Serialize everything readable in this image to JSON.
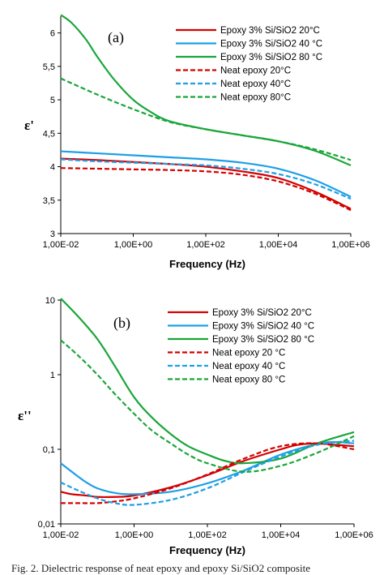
{
  "colors": {
    "red": "#d40000",
    "blue": "#1e9fe6",
    "green": "#1aa63a"
  },
  "caption": "Fig. 2. Dielectric response of neat epoxy and epoxy Si/SiO2 composite",
  "chart_data": [
    {
      "type": "line",
      "panel_label": "(a)",
      "xlabel": "Frequency (Hz)",
      "ylabel": "ε'",
      "xscale": "log",
      "xlim": [
        0.01,
        1000000
      ],
      "ylim": [
        3,
        6.25
      ],
      "xticks": [
        0.01,
        1,
        100,
        10000,
        1000000
      ],
      "xtick_labels": [
        "1,00E-02",
        "1,00E+00",
        "1,00E+02",
        "1,00E+04",
        "1,00E+06"
      ],
      "yticks": [
        3,
        3.5,
        4,
        4.5,
        5,
        5.5,
        6
      ],
      "ytick_labels": [
        "3",
        "3,5",
        "4",
        "4,5",
        "5",
        "5,5",
        "6"
      ],
      "legend_position": "top-right",
      "series": [
        {
          "name": "Epoxy 3% Si/SiO2 20°C",
          "color": "#d40000",
          "dash": false,
          "x": [
            0.01,
            0.1,
            1,
            10,
            100,
            1000,
            10000,
            100000,
            1000000
          ],
          "y": [
            4.12,
            4.1,
            4.07,
            4.04,
            4.0,
            3.93,
            3.83,
            3.63,
            3.37
          ]
        },
        {
          "name": "Epoxy 3% Si/SiO2 40 °C",
          "color": "#1e9fe6",
          "dash": false,
          "x": [
            0.01,
            0.1,
            1,
            10,
            100,
            1000,
            10000,
            100000,
            1000000
          ],
          "y": [
            4.23,
            4.2,
            4.17,
            4.14,
            4.11,
            4.06,
            3.97,
            3.8,
            3.55
          ]
        },
        {
          "name": "Epoxy 3% Si/SiO2 80 °C",
          "color": "#1aa63a",
          "dash": false,
          "x": [
            0.01,
            0.02,
            0.05,
            0.1,
            0.3,
            1,
            3,
            10,
            100,
            1000,
            10000,
            100000,
            1000000
          ],
          "y": [
            6.27,
            6.15,
            5.9,
            5.65,
            5.3,
            5.0,
            4.82,
            4.68,
            4.56,
            4.47,
            4.38,
            4.24,
            4.02
          ]
        },
        {
          "name": "Neat epoxy 20°C",
          "color": "#d40000",
          "dash": true,
          "x": [
            0.01,
            0.1,
            1,
            10,
            100,
            1000,
            10000,
            100000,
            1000000
          ],
          "y": [
            3.98,
            3.97,
            3.96,
            3.95,
            3.93,
            3.88,
            3.78,
            3.6,
            3.35
          ]
        },
        {
          "name": "Neat epoxy 40°C",
          "color": "#1e9fe6",
          "dash": true,
          "x": [
            0.01,
            0.1,
            1,
            10,
            100,
            1000,
            10000,
            100000,
            1000000
          ],
          "y": [
            4.11,
            4.08,
            4.06,
            4.04,
            4.02,
            3.97,
            3.89,
            3.74,
            3.52
          ]
        },
        {
          "name": "Neat epoxy 80°C",
          "color": "#1aa63a",
          "dash": true,
          "x": [
            0.01,
            0.1,
            1,
            10,
            100,
            1000,
            10000,
            100000,
            1000000
          ],
          "y": [
            5.32,
            5.08,
            4.86,
            4.67,
            4.56,
            4.47,
            4.38,
            4.26,
            4.1
          ]
        }
      ]
    },
    {
      "type": "line",
      "panel_label": "(b)",
      "xlabel": "Frequency (Hz)",
      "ylabel": "ε''",
      "xscale": "log",
      "yscale": "log",
      "xlim": [
        0.01,
        1000000
      ],
      "ylim": [
        0.01,
        10
      ],
      "xticks": [
        0.01,
        1,
        100,
        10000,
        1000000
      ],
      "xtick_labels": [
        "1,00E-02",
        "1,00E+00",
        "1,00E+02",
        "1,00E+04",
        "1,00E+06"
      ],
      "yticks": [
        0.01,
        0.1,
        1,
        10
      ],
      "ytick_labels": [
        "0,01",
        "0,1",
        "1",
        "10"
      ],
      "legend_position": "top-right",
      "series": [
        {
          "name": "Epoxy 3% Si/SiO2  20°C",
          "color": "#d40000",
          "dash": false,
          "x": [
            0.01,
            0.02,
            0.05,
            0.1,
            0.3,
            1,
            10,
            100,
            1000,
            10000,
            30000,
            100000,
            300000,
            1000000
          ],
          "y": [
            0.027,
            0.025,
            0.024,
            0.023,
            0.023,
            0.024,
            0.031,
            0.045,
            0.07,
            0.1,
            0.115,
            0.12,
            0.115,
            0.11
          ]
        },
        {
          "name": "Epoxy 3% Si/SiO2 40 °C",
          "color": "#1e9fe6",
          "dash": false,
          "x": [
            0.01,
            0.02,
            0.05,
            0.1,
            0.3,
            1,
            10,
            100,
            1000,
            10000,
            100000,
            300000,
            1000000
          ],
          "y": [
            0.065,
            0.05,
            0.036,
            0.03,
            0.026,
            0.025,
            0.027,
            0.035,
            0.052,
            0.085,
            0.118,
            0.125,
            0.12
          ]
        },
        {
          "name": "Epoxy 3% Si/SiO2 80 °C",
          "color": "#1aa63a",
          "dash": false,
          "x": [
            0.01,
            0.03,
            0.1,
            0.3,
            1,
            3,
            10,
            30,
            100,
            300,
            1000,
            10000,
            100000,
            1000000
          ],
          "y": [
            10.5,
            6.0,
            3.0,
            1.3,
            0.5,
            0.27,
            0.16,
            0.11,
            0.085,
            0.07,
            0.065,
            0.075,
            0.12,
            0.17
          ]
        },
        {
          "name": "Neat epoxy 20 °C",
          "color": "#d40000",
          "dash": true,
          "x": [
            0.01,
            0.03,
            0.1,
            0.3,
            1,
            10,
            100,
            1000,
            10000,
            100000,
            1000000
          ],
          "y": [
            0.019,
            0.019,
            0.019,
            0.02,
            0.022,
            0.03,
            0.046,
            0.075,
            0.11,
            0.12,
            0.1
          ]
        },
        {
          "name": "Neat epoxy 40 °C",
          "color": "#1e9fe6",
          "dash": true,
          "x": [
            0.01,
            0.03,
            0.1,
            0.3,
            1,
            10,
            100,
            1000,
            10000,
            100000,
            1000000
          ],
          "y": [
            0.036,
            0.028,
            0.022,
            0.019,
            0.018,
            0.021,
            0.03,
            0.05,
            0.08,
            0.115,
            0.13
          ]
        },
        {
          "name": "Neat epoxy 80 °C",
          "color": "#1aa63a",
          "dash": true,
          "x": [
            0.01,
            0.03,
            0.1,
            0.3,
            1,
            3,
            10,
            30,
            100,
            1000,
            10000,
            100000,
            1000000
          ],
          "y": [
            2.9,
            1.8,
            1.0,
            0.55,
            0.3,
            0.18,
            0.12,
            0.085,
            0.065,
            0.05,
            0.06,
            0.09,
            0.15
          ]
        }
      ]
    }
  ]
}
